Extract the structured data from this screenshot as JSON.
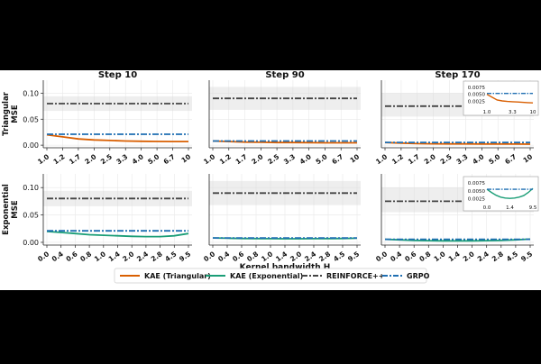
{
  "figure": {
    "col_titles": [
      "Step 10",
      "Step 90",
      "Step 170"
    ],
    "row_labels": [
      "Triangular\nMSE",
      "Exponential\nMSE"
    ],
    "xlabel": "Kernel bandwidth H"
  },
  "legend": {
    "placement": "bottom-center",
    "entries": [
      {
        "label": "KAE (Triangular)",
        "color": "#d95f02",
        "style": "solid"
      },
      {
        "label": "KAE (Exponential)",
        "color": "#1b9e77",
        "style": "solid"
      },
      {
        "label": "REINFORCE++",
        "color": "#444444",
        "style": "dashdot"
      },
      {
        "label": "GRPO",
        "color": "#1f6fb2",
        "style": "dashdot"
      }
    ]
  },
  "chart_data": [
    {
      "type": "line",
      "row": 0,
      "col": 0,
      "title": "Step 10",
      "ylabel": "Triangular\nMSE",
      "xlabel": "",
      "ylim": [
        -0.005,
        0.125
      ],
      "yticks": [
        "0.00",
        "0.05",
        "0.10"
      ],
      "ytick_values": [
        0,
        0.05,
        0.1
      ],
      "xticks": [
        "1.0",
        "1.2",
        "1.7",
        "2.0",
        "2.5",
        "3.3",
        "4.0",
        "5.0",
        "6.7",
        "10"
      ],
      "grid": true,
      "series": [
        {
          "name": "KAE (Triangular)",
          "values": [
            0.02,
            0.016,
            0.012,
            0.01,
            0.009,
            0.008,
            0.0075,
            0.0072,
            0.007,
            0.007
          ]
        },
        {
          "name": "REINFORCE++",
          "values": [
            0.08,
            0.08,
            0.08,
            0.08,
            0.08,
            0.08,
            0.08,
            0.08,
            0.08,
            0.08
          ],
          "band": [
            0.066,
            0.094
          ]
        },
        {
          "name": "GRPO",
          "values": [
            0.021,
            0.021,
            0.021,
            0.021,
            0.021,
            0.021,
            0.021,
            0.021,
            0.021,
            0.021
          ]
        }
      ]
    },
    {
      "type": "line",
      "row": 0,
      "col": 1,
      "title": "Step 90",
      "ylim": [
        -0.005,
        0.125
      ],
      "yticks": [],
      "ytick_values": [],
      "xticks": [
        "1.0",
        "1.2",
        "1.7",
        "2.0",
        "2.5",
        "3.3",
        "4.0",
        "5.0",
        "6.7",
        "10"
      ],
      "grid": true,
      "series": [
        {
          "name": "KAE (Triangular)",
          "values": [
            0.008,
            0.007,
            0.006,
            0.0055,
            0.005,
            0.005,
            0.0048,
            0.0046,
            0.0045,
            0.0045
          ]
        },
        {
          "name": "REINFORCE++",
          "values": [
            0.09,
            0.09,
            0.09,
            0.09,
            0.09,
            0.09,
            0.09,
            0.09,
            0.09,
            0.09
          ],
          "band": [
            0.068,
            0.112
          ]
        },
        {
          "name": "GRPO",
          "values": [
            0.008,
            0.008,
            0.008,
            0.008,
            0.008,
            0.008,
            0.008,
            0.008,
            0.008,
            0.008
          ]
        }
      ]
    },
    {
      "type": "line",
      "row": 0,
      "col": 2,
      "title": "Step 170",
      "ylim": [
        -0.005,
        0.125
      ],
      "yticks": [],
      "ytick_values": [],
      "xticks": [
        "1.0",
        "1.2",
        "1.7",
        "2.0",
        "2.5",
        "3.3",
        "4.0",
        "5.0",
        "6.7",
        "10"
      ],
      "grid": true,
      "series": [
        {
          "name": "KAE (Triangular)",
          "values": [
            0.005,
            0.004,
            0.003,
            0.0027,
            0.0025,
            0.0024,
            0.0023,
            0.0022,
            0.0021,
            0.002
          ]
        },
        {
          "name": "REINFORCE++",
          "values": [
            0.075,
            0.075,
            0.075,
            0.075,
            0.075,
            0.075,
            0.075,
            0.075,
            0.075,
            0.075
          ],
          "band": [
            0.055,
            0.1
          ]
        },
        {
          "name": "GRPO",
          "values": [
            0.0053,
            0.0053,
            0.0053,
            0.0053,
            0.0053,
            0.0053,
            0.0053,
            0.0053,
            0.0053,
            0.0053
          ]
        }
      ],
      "inset": {
        "yticks": [
          "0.0025",
          "0.0050",
          "0.0075"
        ],
        "ytick_values": [
          0.0025,
          0.005,
          0.0075
        ],
        "ylim": [
          0.0008,
          0.009
        ],
        "xticks": [
          "1.0",
          "3.3",
          "10"
        ],
        "xtick_idx": [
          0,
          5,
          9
        ],
        "series": [
          {
            "name": "KAE (Triangular)",
            "values": [
              0.005,
              0.004,
              0.003,
              0.0027,
              0.0025,
              0.0024,
              0.0023,
              0.0022,
              0.0021,
              0.002
            ]
          },
          {
            "name": "GRPO",
            "values": [
              0.0053,
              0.0053,
              0.0053,
              0.0053,
              0.0053,
              0.0053,
              0.0053,
              0.0053,
              0.0053,
              0.0053
            ]
          }
        ]
      }
    },
    {
      "type": "line",
      "row": 1,
      "col": 0,
      "ylabel": "Exponential\nMSE",
      "xlabel": "",
      "ylim": [
        -0.005,
        0.125
      ],
      "yticks": [
        "0.00",
        "0.05",
        "0.10"
      ],
      "ytick_values": [
        0,
        0.05,
        0.1
      ],
      "xticks": [
        "0.0",
        "0.4",
        "0.6",
        "0.8",
        "1.0",
        "1.4",
        "2.0",
        "2.4",
        "2.8",
        "4.5",
        "9.5"
      ],
      "grid": true,
      "series": [
        {
          "name": "KAE (Exponential)",
          "values": [
            0.02,
            0.018,
            0.016,
            0.014,
            0.013,
            0.012,
            0.011,
            0.0105,
            0.0105,
            0.012,
            0.016
          ]
        },
        {
          "name": "REINFORCE++",
          "values": [
            0.08,
            0.08,
            0.08,
            0.08,
            0.08,
            0.08,
            0.08,
            0.08,
            0.08,
            0.08,
            0.08
          ],
          "band": [
            0.066,
            0.094
          ]
        },
        {
          "name": "GRPO",
          "values": [
            0.021,
            0.021,
            0.021,
            0.021,
            0.021,
            0.021,
            0.021,
            0.021,
            0.021,
            0.021,
            0.021
          ]
        }
      ]
    },
    {
      "type": "line",
      "row": 1,
      "col": 1,
      "xlabel": "Kernel bandwidth H",
      "ylim": [
        -0.005,
        0.125
      ],
      "yticks": [],
      "ytick_values": [],
      "xticks": [
        "0.0",
        "0.4",
        "0.6",
        "0.8",
        "1.0",
        "1.4",
        "2.0",
        "2.4",
        "2.8",
        "4.5",
        "9.5"
      ],
      "grid": true,
      "series": [
        {
          "name": "KAE (Exponential)",
          "values": [
            0.008,
            0.0075,
            0.007,
            0.0068,
            0.0067,
            0.0066,
            0.0066,
            0.0067,
            0.0068,
            0.007,
            0.0075
          ]
        },
        {
          "name": "REINFORCE++",
          "values": [
            0.09,
            0.09,
            0.09,
            0.09,
            0.09,
            0.09,
            0.09,
            0.09,
            0.09,
            0.09,
            0.09
          ],
          "band": [
            0.068,
            0.112
          ]
        },
        {
          "name": "GRPO",
          "values": [
            0.008,
            0.008,
            0.008,
            0.008,
            0.008,
            0.008,
            0.008,
            0.008,
            0.008,
            0.008,
            0.008
          ]
        }
      ]
    },
    {
      "type": "line",
      "row": 1,
      "col": 2,
      "ylim": [
        -0.005,
        0.125
      ],
      "yticks": [],
      "ytick_values": [],
      "xticks": [
        "0.0",
        "0.4",
        "0.6",
        "0.8",
        "1.0",
        "1.4",
        "2.0",
        "2.4",
        "2.8",
        "4.5",
        "9.5"
      ],
      "grid": true,
      "series": [
        {
          "name": "KAE (Exponential)",
          "values": [
            0.0055,
            0.0045,
            0.0036,
            0.003,
            0.0027,
            0.0026,
            0.0027,
            0.003,
            0.0035,
            0.0045,
            0.0058
          ]
        },
        {
          "name": "REINFORCE++",
          "values": [
            0.075,
            0.075,
            0.075,
            0.075,
            0.075,
            0.075,
            0.075,
            0.075,
            0.075,
            0.075,
            0.075
          ],
          "band": [
            0.055,
            0.1
          ]
        },
        {
          "name": "GRPO",
          "values": [
            0.0055,
            0.0055,
            0.0055,
            0.0055,
            0.0055,
            0.0055,
            0.0055,
            0.0055,
            0.0055,
            0.0055,
            0.0055
          ]
        }
      ],
      "inset": {
        "yticks": [
          "0.0025",
          "0.0050",
          "0.0075"
        ],
        "ytick_values": [
          0.0025,
          0.005,
          0.0075
        ],
        "ylim": [
          0.0015,
          0.009
        ],
        "xticks": [
          "0.0",
          "1.4",
          "9.5"
        ],
        "xtick_idx": [
          0,
          5,
          10
        ],
        "series": [
          {
            "name": "KAE (Exponential)",
            "values": [
              0.0055,
              0.0045,
              0.0036,
              0.003,
              0.0027,
              0.0026,
              0.0027,
              0.003,
              0.0035,
              0.0045,
              0.0058
            ]
          },
          {
            "name": "GRPO",
            "values": [
              0.0055,
              0.0055,
              0.0055,
              0.0055,
              0.0055,
              0.0055,
              0.0055,
              0.0055,
              0.0055,
              0.0055,
              0.0055
            ]
          }
        ]
      }
    }
  ]
}
